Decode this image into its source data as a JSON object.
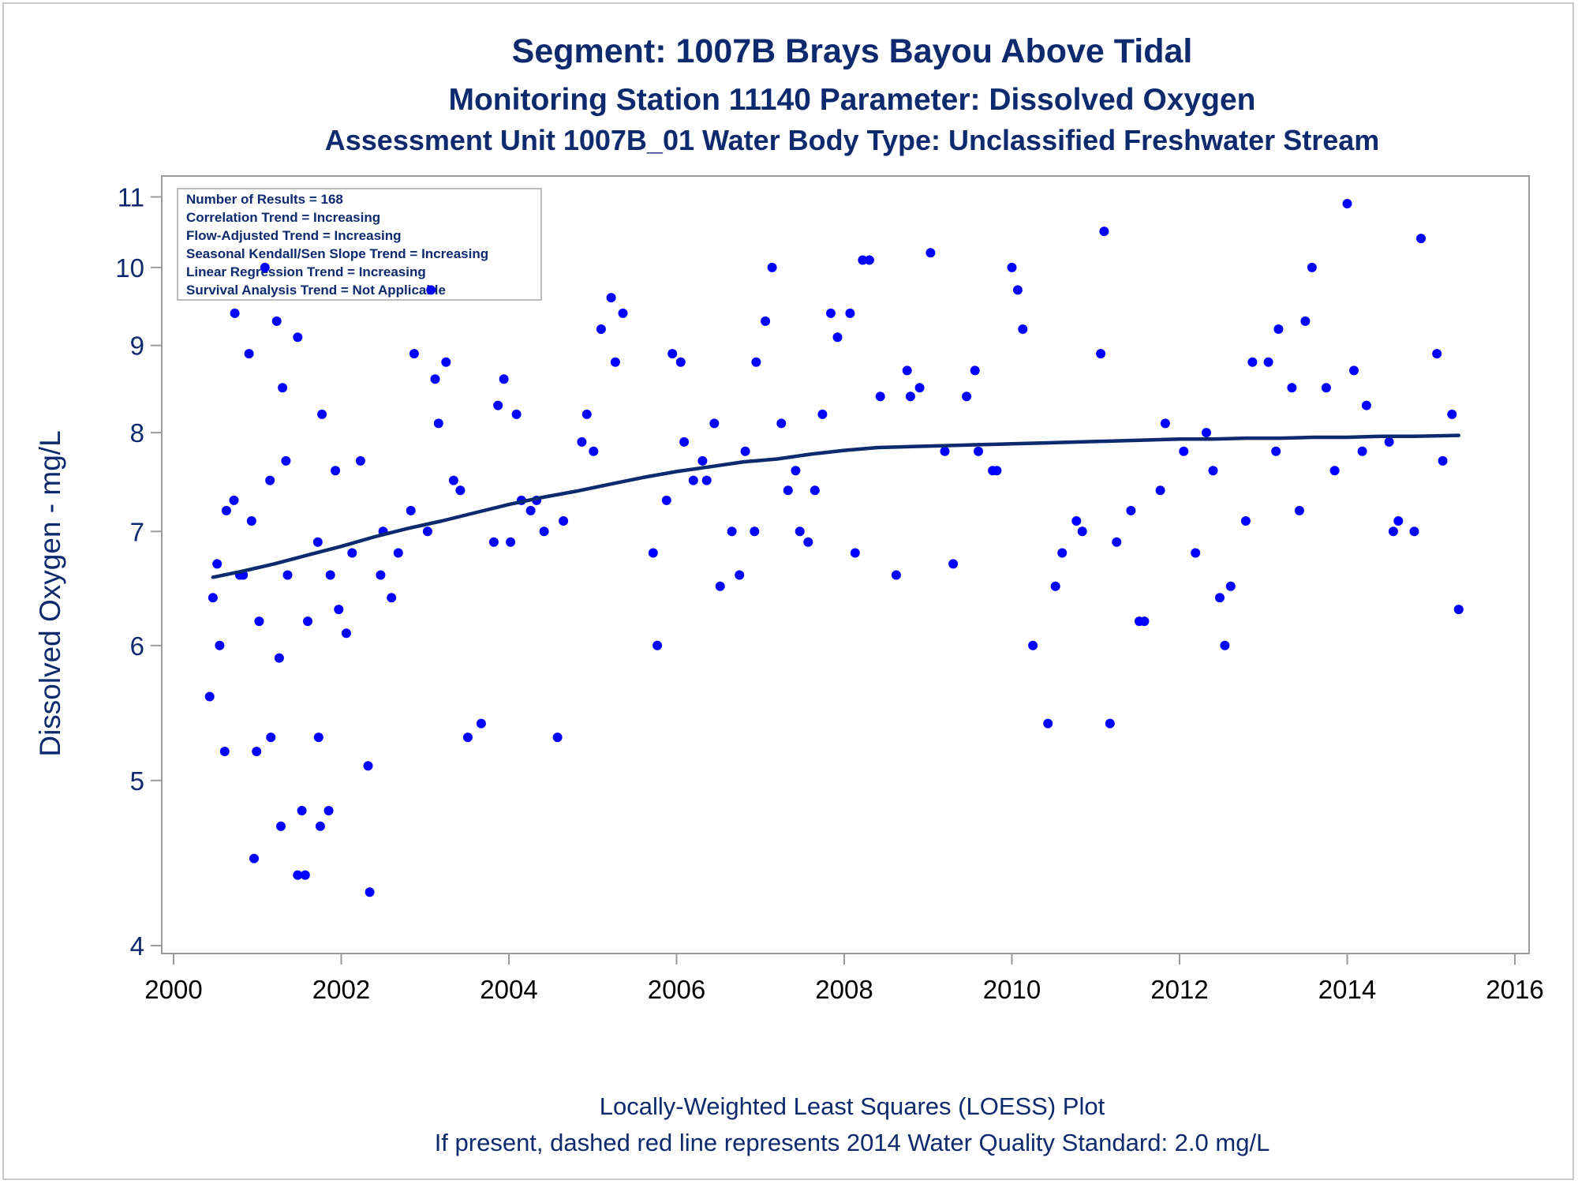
{
  "titles": {
    "line1": "Segment: 1007B  Brays Bayou Above Tidal",
    "line2": "Monitoring Station 11140 Parameter: Dissolved Oxygen",
    "line3": "Assessment Unit 1007B_01   Water Body Type: Unclassified Freshwater Stream"
  },
  "stats_box": [
    "Number of Results = 168",
    "Correlation Trend = Increasing",
    "Flow-Adjusted Trend = Increasing",
    "Seasonal Kendall/Sen Slope Trend = Increasing",
    "Linear Regression Trend = Increasing",
    "Survival Analysis Trend = Not Applicable"
  ],
  "footnotes": {
    "line1": "Locally-Weighted Least Squares (LOESS) Plot",
    "line2": "If present, dashed red line represents 2014 Water Quality Standard: 2.0 mg/L"
  },
  "colors": {
    "text": "#0d2a6e",
    "points": "#0000ff",
    "loess": "#0d2a6e",
    "axis": "#9a9a9a"
  },
  "chart_data": {
    "type": "scatter",
    "xlabel": "",
    "ylabel": "Dissolved Oxygen - mg/L",
    "xlim": [
      2000,
      2016
    ],
    "ylim": [
      4,
      11.1
    ],
    "yscale": "log",
    "xticks": [
      2000,
      2002,
      2004,
      2006,
      2008,
      2010,
      2012,
      2014,
      2016
    ],
    "yticks": [
      4,
      5,
      6,
      7,
      8,
      9,
      10,
      11
    ],
    "grid": false,
    "points": [
      [
        2000.43,
        5.6
      ],
      [
        2000.47,
        6.4
      ],
      [
        2000.52,
        6.7
      ],
      [
        2000.55,
        6.0
      ],
      [
        2000.61,
        5.2
      ],
      [
        2000.63,
        7.2
      ],
      [
        2000.72,
        7.3
      ],
      [
        2000.73,
        9.4
      ],
      [
        2000.79,
        6.6
      ],
      [
        2000.83,
        6.6
      ],
      [
        2000.9,
        8.9
      ],
      [
        2000.93,
        7.1
      ],
      [
        2000.96,
        4.5
      ],
      [
        2000.99,
        5.2
      ],
      [
        2001.02,
        6.2
      ],
      [
        2001.09,
        10.0
      ],
      [
        2001.15,
        7.5
      ],
      [
        2001.16,
        5.3
      ],
      [
        2001.23,
        9.3
      ],
      [
        2001.26,
        5.9
      ],
      [
        2001.28,
        4.7
      ],
      [
        2001.3,
        8.5
      ],
      [
        2001.34,
        7.7
      ],
      [
        2001.36,
        6.6
      ],
      [
        2001.48,
        9.1
      ],
      [
        2001.48,
        4.4
      ],
      [
        2001.53,
        4.8
      ],
      [
        2001.57,
        4.4
      ],
      [
        2001.6,
        6.2
      ],
      [
        2001.72,
        6.9
      ],
      [
        2001.73,
        5.3
      ],
      [
        2001.75,
        4.7
      ],
      [
        2001.77,
        8.2
      ],
      [
        2001.85,
        4.8
      ],
      [
        2001.87,
        6.6
      ],
      [
        2001.93,
        7.6
      ],
      [
        2001.97,
        6.3
      ],
      [
        2002.06,
        6.1
      ],
      [
        2002.13,
        6.8
      ],
      [
        2002.23,
        7.7
      ],
      [
        2002.32,
        5.1
      ],
      [
        2002.34,
        4.3
      ],
      [
        2002.47,
        6.6
      ],
      [
        2002.5,
        7.0
      ],
      [
        2002.6,
        6.4
      ],
      [
        2002.68,
        6.8
      ],
      [
        2002.83,
        7.2
      ],
      [
        2002.87,
        8.9
      ],
      [
        2003.03,
        7.0
      ],
      [
        2003.07,
        9.7
      ],
      [
        2003.12,
        8.6
      ],
      [
        2003.16,
        8.1
      ],
      [
        2003.25,
        8.8
      ],
      [
        2003.34,
        7.5
      ],
      [
        2003.42,
        7.4
      ],
      [
        2003.51,
        5.3
      ],
      [
        2003.67,
        5.4
      ],
      [
        2003.82,
        6.9
      ],
      [
        2003.87,
        8.3
      ],
      [
        2003.94,
        8.6
      ],
      [
        2004.02,
        6.9
      ],
      [
        2004.09,
        8.2
      ],
      [
        2004.15,
        7.3
      ],
      [
        2004.26,
        7.2
      ],
      [
        2004.33,
        7.3
      ],
      [
        2004.42,
        7.0
      ],
      [
        2004.58,
        5.3
      ],
      [
        2004.65,
        7.1
      ],
      [
        2004.87,
        7.9
      ],
      [
        2004.93,
        8.2
      ],
      [
        2005.01,
        7.8
      ],
      [
        2005.1,
        9.2
      ],
      [
        2005.22,
        9.6
      ],
      [
        2005.27,
        8.8
      ],
      [
        2005.36,
        9.4
      ],
      [
        2005.72,
        6.8
      ],
      [
        2005.77,
        6.0
      ],
      [
        2005.88,
        7.3
      ],
      [
        2005.95,
        8.9
      ],
      [
        2006.05,
        8.8
      ],
      [
        2006.09,
        7.9
      ],
      [
        2006.2,
        7.5
      ],
      [
        2006.31,
        7.7
      ],
      [
        2006.36,
        7.5
      ],
      [
        2006.45,
        8.1
      ],
      [
        2006.52,
        6.5
      ],
      [
        2006.66,
        7.0
      ],
      [
        2006.75,
        6.6
      ],
      [
        2006.82,
        7.8
      ],
      [
        2006.93,
        7.0
      ],
      [
        2006.95,
        8.8
      ],
      [
        2007.06,
        9.3
      ],
      [
        2007.14,
        10.0
      ],
      [
        2007.25,
        8.1
      ],
      [
        2007.33,
        7.4
      ],
      [
        2007.42,
        7.6
      ],
      [
        2007.47,
        7.0
      ],
      [
        2007.57,
        6.9
      ],
      [
        2007.65,
        7.4
      ],
      [
        2007.74,
        8.2
      ],
      [
        2007.84,
        9.4
      ],
      [
        2007.92,
        9.1
      ],
      [
        2008.07,
        9.4
      ],
      [
        2008.13,
        6.8
      ],
      [
        2008.22,
        10.1
      ],
      [
        2008.3,
        10.1
      ],
      [
        2008.43,
        8.4
      ],
      [
        2008.62,
        6.6
      ],
      [
        2008.75,
        8.7
      ],
      [
        2008.79,
        8.4
      ],
      [
        2008.9,
        8.5
      ],
      [
        2009.03,
        10.2
      ],
      [
        2009.2,
        7.8
      ],
      [
        2009.3,
        6.7
      ],
      [
        2009.46,
        8.4
      ],
      [
        2009.56,
        8.7
      ],
      [
        2009.6,
        7.8
      ],
      [
        2009.77,
        7.6
      ],
      [
        2009.82,
        7.6
      ],
      [
        2010.0,
        10.0
      ],
      [
        2010.07,
        9.7
      ],
      [
        2010.13,
        9.2
      ],
      [
        2010.25,
        6.0
      ],
      [
        2010.43,
        5.4
      ],
      [
        2010.52,
        6.5
      ],
      [
        2010.6,
        6.8
      ],
      [
        2010.77,
        7.1
      ],
      [
        2010.84,
        7.0
      ],
      [
        2011.06,
        8.9
      ],
      [
        2011.1,
        10.5
      ],
      [
        2011.17,
        5.4
      ],
      [
        2011.25,
        6.9
      ],
      [
        2011.42,
        7.2
      ],
      [
        2011.52,
        6.2
      ],
      [
        2011.58,
        6.2
      ],
      [
        2011.77,
        7.4
      ],
      [
        2011.83,
        8.1
      ],
      [
        2012.05,
        7.8
      ],
      [
        2012.19,
        6.8
      ],
      [
        2012.32,
        8.0
      ],
      [
        2012.4,
        7.6
      ],
      [
        2012.48,
        6.4
      ],
      [
        2012.54,
        6.0
      ],
      [
        2012.61,
        6.5
      ],
      [
        2012.79,
        7.1
      ],
      [
        2012.87,
        8.8
      ],
      [
        2013.06,
        8.8
      ],
      [
        2013.15,
        7.8
      ],
      [
        2013.18,
        9.2
      ],
      [
        2013.34,
        8.5
      ],
      [
        2013.43,
        7.2
      ],
      [
        2013.5,
        9.3
      ],
      [
        2013.58,
        10.0
      ],
      [
        2013.75,
        8.5
      ],
      [
        2013.85,
        7.6
      ],
      [
        2014.0,
        10.9
      ],
      [
        2014.08,
        8.7
      ],
      [
        2014.18,
        7.8
      ],
      [
        2014.23,
        8.3
      ],
      [
        2014.5,
        7.9
      ],
      [
        2014.55,
        7.0
      ],
      [
        2014.61,
        7.1
      ],
      [
        2014.8,
        7.0
      ],
      [
        2014.88,
        10.4
      ],
      [
        2015.07,
        8.9
      ],
      [
        2015.14,
        7.7
      ],
      [
        2015.25,
        8.2
      ],
      [
        2015.33,
        6.3
      ]
    ],
    "loess": [
      [
        2000.47,
        6.58
      ],
      [
        2000.8,
        6.63
      ],
      [
        2001.2,
        6.7
      ],
      [
        2001.6,
        6.78
      ],
      [
        2002.0,
        6.86
      ],
      [
        2002.4,
        6.95
      ],
      [
        2002.8,
        7.03
      ],
      [
        2003.2,
        7.1
      ],
      [
        2003.6,
        7.18
      ],
      [
        2004.0,
        7.26
      ],
      [
        2004.4,
        7.33
      ],
      [
        2004.8,
        7.39
      ],
      [
        2005.2,
        7.46
      ],
      [
        2005.6,
        7.53
      ],
      [
        2006.0,
        7.59
      ],
      [
        2006.4,
        7.64
      ],
      [
        2006.8,
        7.69
      ],
      [
        2007.2,
        7.72
      ],
      [
        2007.6,
        7.77
      ],
      [
        2008.0,
        7.81
      ],
      [
        2008.4,
        7.84
      ],
      [
        2008.8,
        7.85
      ],
      [
        2009.2,
        7.86
      ],
      [
        2009.6,
        7.87
      ],
      [
        2010.0,
        7.88
      ],
      [
        2010.4,
        7.89
      ],
      [
        2010.8,
        7.9
      ],
      [
        2011.2,
        7.91
      ],
      [
        2011.6,
        7.92
      ],
      [
        2012.0,
        7.93
      ],
      [
        2012.4,
        7.93
      ],
      [
        2012.8,
        7.94
      ],
      [
        2013.2,
        7.94
      ],
      [
        2013.6,
        7.95
      ],
      [
        2014.0,
        7.95
      ],
      [
        2014.4,
        7.96
      ],
      [
        2014.8,
        7.96
      ],
      [
        2015.33,
        7.97
      ]
    ]
  }
}
